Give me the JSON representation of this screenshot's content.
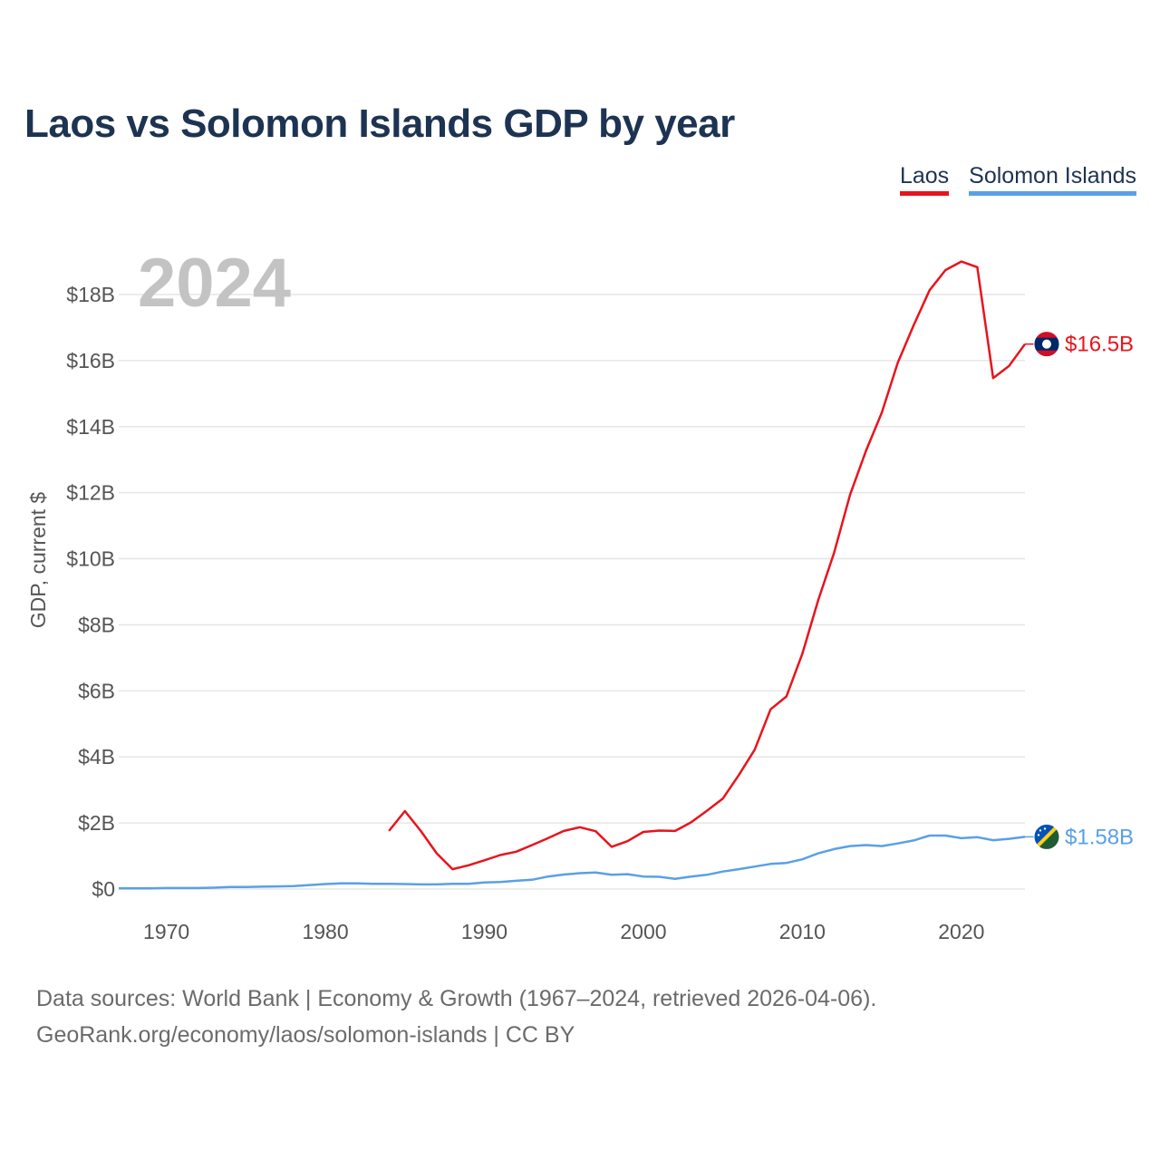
{
  "title": "Laos vs Solomon Islands GDP by year",
  "legend": [
    {
      "name": "Laos",
      "color": "#e8141c"
    },
    {
      "name": "Solomon Islands",
      "color": "#5aa0e6"
    }
  ],
  "footer": {
    "line1": "Data sources: World Bank | Economy & Growth (1967–2024, retrieved 2026-04-06).",
    "line2": "GeoRank.org/economy/laos/solomon-islands | CC BY"
  },
  "year_label": "2024",
  "chart_data": {
    "type": "line",
    "title": "Laos vs Solomon Islands GDP by year",
    "xlabel": "",
    "ylabel": "GDP, current $",
    "xlim": [
      1967,
      2024
    ],
    "ylim": [
      0,
      19
    ],
    "grid": true,
    "legend_position": "top-right",
    "x_ticks": [
      1970,
      1980,
      1990,
      2000,
      2010,
      2020
    ],
    "y_ticks": [
      {
        "value": 0,
        "label": "$0"
      },
      {
        "value": 2,
        "label": "$2B"
      },
      {
        "value": 4,
        "label": "$4B"
      },
      {
        "value": 6,
        "label": "$6B"
      },
      {
        "value": 8,
        "label": "$8B"
      },
      {
        "value": 10,
        "label": "$10B"
      },
      {
        "value": 12,
        "label": "$12B"
      },
      {
        "value": 14,
        "label": "$14B"
      },
      {
        "value": 16,
        "label": "$16B"
      },
      {
        "value": 18,
        "label": "$18B"
      }
    ],
    "series": [
      {
        "name": "Laos",
        "color": "#e8141c",
        "end_label": "$16.5B",
        "flag": "laos-flag",
        "x": [
          1984,
          1985,
          1986,
          1987,
          1988,
          1989,
          1990,
          1991,
          1992,
          1993,
          1994,
          1995,
          1996,
          1997,
          1998,
          1999,
          2000,
          2001,
          2002,
          2003,
          2004,
          2005,
          2006,
          2007,
          2008,
          2009,
          2010,
          2011,
          2012,
          2013,
          2014,
          2015,
          2016,
          2017,
          2018,
          2019,
          2020,
          2021,
          2022,
          2023,
          2024
        ],
        "values": [
          1.76,
          2.36,
          1.76,
          1.08,
          0.6,
          0.72,
          0.87,
          1.03,
          1.13,
          1.33,
          1.54,
          1.76,
          1.87,
          1.75,
          1.28,
          1.45,
          1.73,
          1.77,
          1.76,
          2.02,
          2.37,
          2.74,
          3.45,
          4.22,
          5.44,
          5.83,
          7.13,
          8.75,
          10.19,
          11.94,
          13.27,
          14.43,
          15.93,
          17.07,
          18.13,
          18.74,
          19.0,
          18.83,
          15.47,
          15.84,
          16.5
        ]
      },
      {
        "name": "Solomon Islands",
        "color": "#5aa0e6",
        "end_label": "$1.58B",
        "flag": "solomon-islands-flag",
        "x": [
          1967,
          1968,
          1969,
          1970,
          1971,
          1972,
          1973,
          1974,
          1975,
          1976,
          1977,
          1978,
          1979,
          1980,
          1981,
          1982,
          1983,
          1984,
          1985,
          1986,
          1987,
          1988,
          1989,
          1990,
          1991,
          1992,
          1993,
          1994,
          1995,
          1996,
          1997,
          1998,
          1999,
          2000,
          2001,
          2002,
          2003,
          2004,
          2005,
          2006,
          2007,
          2008,
          2009,
          2010,
          2011,
          2012,
          2013,
          2014,
          2015,
          2016,
          2017,
          2018,
          2019,
          2020,
          2021,
          2022,
          2023,
          2024
        ],
        "values": [
          0.02,
          0.02,
          0.02,
          0.03,
          0.03,
          0.03,
          0.04,
          0.06,
          0.06,
          0.07,
          0.08,
          0.09,
          0.12,
          0.15,
          0.17,
          0.17,
          0.16,
          0.16,
          0.15,
          0.14,
          0.14,
          0.16,
          0.16,
          0.2,
          0.21,
          0.25,
          0.28,
          0.38,
          0.44,
          0.48,
          0.5,
          0.43,
          0.45,
          0.38,
          0.37,
          0.31,
          0.38,
          0.43,
          0.53,
          0.6,
          0.68,
          0.76,
          0.79,
          0.9,
          1.08,
          1.21,
          1.3,
          1.33,
          1.3,
          1.38,
          1.47,
          1.62,
          1.62,
          1.54,
          1.57,
          1.48,
          1.52,
          1.58
        ]
      }
    ]
  }
}
